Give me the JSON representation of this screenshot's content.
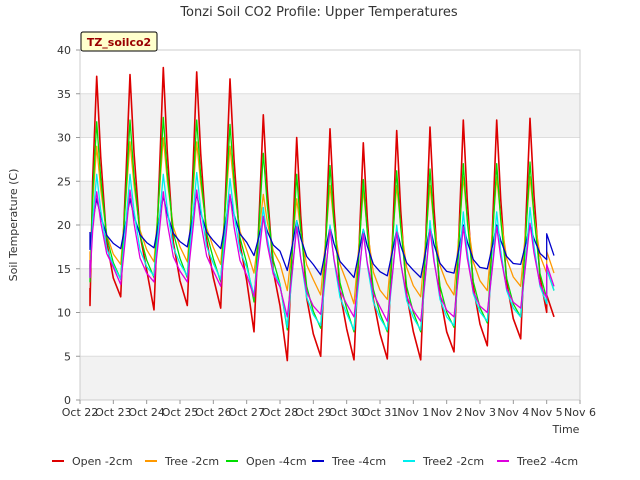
{
  "chart_data": {
    "type": "line",
    "title": "Tonzi Soil CO2 Profile: Upper Temperatures",
    "xlabel": "Time",
    "ylabel": "Soil Temperature (C)",
    "site_label": "TZ_soilco2",
    "xlim": [
      0,
      15
    ],
    "ylim": [
      0,
      40
    ],
    "x_ticks": [
      {
        "pos": 0,
        "label": "Oct 22"
      },
      {
        "pos": 1,
        "label": "Oct 23"
      },
      {
        "pos": 2,
        "label": "Oct 24"
      },
      {
        "pos": 3,
        "label": "Oct 25"
      },
      {
        "pos": 4,
        "label": "Oct 26"
      },
      {
        "pos": 5,
        "label": "Oct 27"
      },
      {
        "pos": 6,
        "label": "Oct 28"
      },
      {
        "pos": 7,
        "label": "Oct 29"
      },
      {
        "pos": 8,
        "label": "Oct 30"
      },
      {
        "pos": 9,
        "label": "Oct 31"
      },
      {
        "pos": 10,
        "label": "Nov 1"
      },
      {
        "pos": 11,
        "label": "Nov 2"
      },
      {
        "pos": 12,
        "label": "Nov 3"
      },
      {
        "pos": 13,
        "label": "Nov 4"
      },
      {
        "pos": 14,
        "label": "Nov 5"
      },
      {
        "pos": 15,
        "label": "Nov 6"
      }
    ],
    "y_ticks": [
      0,
      5,
      10,
      15,
      20,
      25,
      30,
      35,
      40
    ],
    "grid": true,
    "legend_position": "bottom",
    "day_starts": [
      0.3,
      1,
      2,
      3,
      4,
      5,
      6,
      7,
      8,
      9,
      10,
      11,
      12,
      13,
      14
    ],
    "series": [
      {
        "name": "Open -2cm",
        "color": "#dd0000",
        "width": 1.6,
        "min": [
          10.8,
          11.8,
          10.3,
          10.8,
          10.5,
          7.8,
          4.5,
          5.0,
          4.6,
          4.7,
          4.6,
          5.5,
          6.2,
          7.0,
          9.5
        ],
        "max": [
          37.0,
          37.2,
          38.0,
          37.5,
          36.7,
          32.6,
          30.0,
          31.0,
          29.4,
          30.8,
          31.2,
          32.0,
          32.0,
          32.2
        ]
      },
      {
        "name": "Tree -2cm",
        "color": "#ff9900",
        "width": 1.3,
        "min": [
          15.0,
          15.5,
          15.8,
          15.8,
          15.5,
          14.5,
          12.5,
          12.0,
          11.0,
          11.5,
          11.8,
          12.0,
          12.5,
          13.0,
          14.5
        ],
        "max": [
          29.0,
          29.5,
          30.0,
          29.5,
          29.0,
          23.5,
          23.0,
          24.5,
          24.0,
          24.5,
          24.5,
          25.5,
          25.5,
          25.5
        ]
      },
      {
        "name": "Open -4cm",
        "color": "#00dd00",
        "width": 1.3,
        "min": [
          13.5,
          13.8,
          14.0,
          14.0,
          13.5,
          11.2,
          8.0,
          8.2,
          7.8,
          7.8,
          7.8,
          8.3,
          8.8,
          9.5,
          12.5
        ],
        "max": [
          31.8,
          32.0,
          32.3,
          32.0,
          31.5,
          28.2,
          25.8,
          26.8,
          25.2,
          26.2,
          26.4,
          27.0,
          27.0,
          27.2
        ]
      },
      {
        "name": "Tree -4cm",
        "color": "#0000cc",
        "width": 1.3,
        "min": [
          17.2,
          17.3,
          17.4,
          17.5,
          17.3,
          16.5,
          14.8,
          14.3,
          14.0,
          14.2,
          14.0,
          14.5,
          15.0,
          15.5,
          16.5
        ],
        "max": [
          23.0,
          23.0,
          23.3,
          23.5,
          23.3,
          20.8,
          20.5,
          19.8,
          19.5,
          19.5,
          19.8,
          20.0,
          20.0,
          20.0
        ]
      },
      {
        "name": "Tree2 -2cm",
        "color": "#00eeee",
        "width": 1.3,
        "min": [
          14.0,
          13.8,
          14.2,
          14.2,
          13.8,
          12.0,
          8.3,
          8.5,
          8.0,
          8.0,
          8.0,
          8.5,
          9.0,
          9.5,
          12.5
        ],
        "max": [
          25.8,
          25.8,
          25.8,
          26.0,
          25.3,
          22.0,
          20.5,
          20.0,
          19.5,
          20.0,
          20.5,
          21.5,
          21.5,
          22.0
        ]
      },
      {
        "name": "Tree2 -4cm",
        "color": "#dd00dd",
        "width": 1.3,
        "min": [
          14.0,
          13.2,
          13.5,
          13.5,
          13.0,
          11.8,
          9.5,
          9.8,
          9.5,
          9.0,
          9.0,
          9.5,
          10.0,
          10.5,
          13.0
        ],
        "max": [
          23.8,
          24.0,
          23.8,
          24.0,
          23.5,
          21.0,
          19.8,
          19.5,
          19.0,
          19.2,
          19.5,
          19.8,
          19.8,
          20.2
        ]
      }
    ]
  }
}
